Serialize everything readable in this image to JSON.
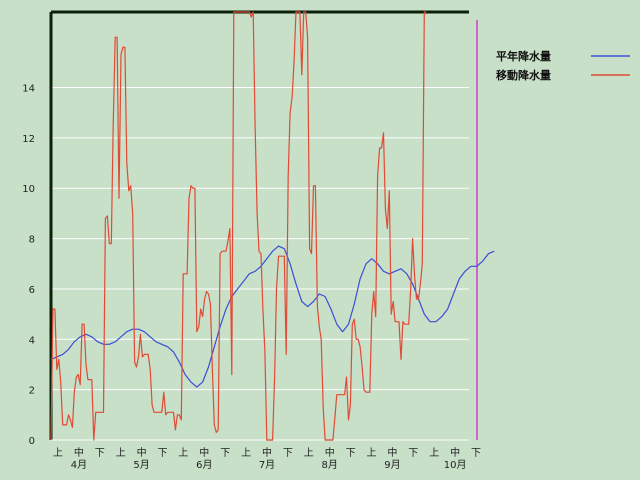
{
  "chart_data": {
    "type": "line",
    "title": "",
    "xlabel": "",
    "ylabel": "",
    "ylim": [
      0,
      17
    ],
    "y_ticks": [
      0,
      2,
      4,
      6,
      8,
      10,
      12,
      14
    ],
    "grid": "horizontal",
    "legend_position": "top-right",
    "x_ticks": [
      "上",
      "中",
      "下",
      "上",
      "中",
      "下",
      "上",
      "中",
      "下",
      "上",
      "中",
      "下",
      "上",
      "中",
      "下",
      "上",
      "中",
      "下",
      "上",
      "中",
      "下"
    ],
    "month_labels": [
      "4月",
      "5月",
      "6月",
      "7月",
      "8月",
      "9月",
      "10月"
    ],
    "x_day_range": [
      0,
      215
    ],
    "series": [
      {
        "name": "平年降水量",
        "color": "#3a4fd6",
        "points": [
          [
            0,
            3.2
          ],
          [
            3,
            3.3
          ],
          [
            6,
            3.4
          ],
          [
            9,
            3.6
          ],
          [
            12,
            3.9
          ],
          [
            15,
            4.1
          ],
          [
            18,
            4.2
          ],
          [
            21,
            4.1
          ],
          [
            24,
            3.9
          ],
          [
            27,
            3.8
          ],
          [
            30,
            3.8
          ],
          [
            33,
            3.9
          ],
          [
            36,
            4.1
          ],
          [
            39,
            4.3
          ],
          [
            42,
            4.4
          ],
          [
            45,
            4.4
          ],
          [
            48,
            4.3
          ],
          [
            51,
            4.1
          ],
          [
            54,
            3.9
          ],
          [
            57,
            3.8
          ],
          [
            60,
            3.7
          ],
          [
            63,
            3.5
          ],
          [
            66,
            3.1
          ],
          [
            69,
            2.6
          ],
          [
            72,
            2.3
          ],
          [
            75,
            2.1
          ],
          [
            78,
            2.3
          ],
          [
            81,
            2.9
          ],
          [
            84,
            3.7
          ],
          [
            87,
            4.5
          ],
          [
            90,
            5.2
          ],
          [
            93,
            5.7
          ],
          [
            96,
            6.0
          ],
          [
            99,
            6.3
          ],
          [
            102,
            6.6
          ],
          [
            105,
            6.7
          ],
          [
            108,
            6.9
          ],
          [
            111,
            7.2
          ],
          [
            114,
            7.5
          ],
          [
            117,
            7.7
          ],
          [
            120,
            7.6
          ],
          [
            123,
            7.0
          ],
          [
            126,
            6.2
          ],
          [
            129,
            5.5
          ],
          [
            132,
            5.3
          ],
          [
            135,
            5.5
          ],
          [
            138,
            5.8
          ],
          [
            141,
            5.7
          ],
          [
            144,
            5.2
          ],
          [
            147,
            4.6
          ],
          [
            150,
            4.3
          ],
          [
            153,
            4.6
          ],
          [
            156,
            5.4
          ],
          [
            159,
            6.4
          ],
          [
            162,
            7.0
          ],
          [
            165,
            7.2
          ],
          [
            168,
            7.0
          ],
          [
            171,
            6.7
          ],
          [
            174,
            6.6
          ],
          [
            177,
            6.7
          ],
          [
            180,
            6.8
          ],
          [
            183,
            6.6
          ],
          [
            186,
            6.2
          ],
          [
            189,
            5.6
          ],
          [
            192,
            5.0
          ],
          [
            195,
            4.7
          ],
          [
            198,
            4.7
          ],
          [
            201,
            4.9
          ],
          [
            204,
            5.2
          ],
          [
            207,
            5.8
          ],
          [
            210,
            6.4
          ],
          [
            213,
            6.7
          ],
          [
            216,
            6.9
          ],
          [
            219,
            6.9
          ],
          [
            222,
            7.1
          ],
          [
            225,
            7.4
          ],
          [
            228,
            7.5
          ]
        ]
      },
      {
        "name": "移動降水量",
        "color": "#e14a34",
        "points": [
          [
            0,
            0
          ],
          [
            1,
            5.2
          ],
          [
            2,
            5.2
          ],
          [
            3,
            2.8
          ],
          [
            4,
            3.2
          ],
          [
            5,
            2.3
          ],
          [
            6,
            0.6
          ],
          [
            7,
            0.6
          ],
          [
            8,
            0.6
          ],
          [
            9,
            1.0
          ],
          [
            10,
            0.8
          ],
          [
            11,
            0.5
          ],
          [
            12,
            1.9
          ],
          [
            13,
            2.5
          ],
          [
            14,
            2.6
          ],
          [
            15,
            2.2
          ],
          [
            16,
            4.6
          ],
          [
            17,
            4.6
          ],
          [
            18,
            3.0
          ],
          [
            19,
            2.4
          ],
          [
            20,
            2.4
          ],
          [
            21,
            2.4
          ],
          [
            22,
            0
          ],
          [
            23,
            1.1
          ],
          [
            24,
            1.1
          ],
          [
            25,
            1.1
          ],
          [
            26,
            1.1
          ],
          [
            27,
            1.1
          ],
          [
            28,
            8.8
          ],
          [
            29,
            8.9
          ],
          [
            30,
            7.8
          ],
          [
            31,
            7.8
          ],
          [
            32,
            12.5
          ],
          [
            33,
            16.0
          ],
          [
            34,
            16.0
          ],
          [
            35,
            9.6
          ],
          [
            36,
            15.3
          ],
          [
            37,
            15.6
          ],
          [
            38,
            15.6
          ],
          [
            39,
            11.0
          ],
          [
            40,
            9.9
          ],
          [
            41,
            10.1
          ],
          [
            42,
            9.0
          ],
          [
            43,
            3.1
          ],
          [
            44,
            2.9
          ],
          [
            45,
            3.3
          ],
          [
            46,
            4.2
          ],
          [
            47,
            3.3
          ],
          [
            48,
            3.4
          ],
          [
            49,
            3.4
          ],
          [
            50,
            3.4
          ],
          [
            51,
            2.8
          ],
          [
            52,
            1.4
          ],
          [
            53,
            1.1
          ],
          [
            54,
            1.1
          ],
          [
            55,
            1.1
          ],
          [
            56,
            1.1
          ],
          [
            57,
            1.1
          ],
          [
            58,
            1.9
          ],
          [
            59,
            1.0
          ],
          [
            60,
            1.1
          ],
          [
            61,
            1.1
          ],
          [
            62,
            1.1
          ],
          [
            63,
            1.1
          ],
          [
            64,
            0.4
          ],
          [
            65,
            1.0
          ],
          [
            66,
            1.0
          ],
          [
            67,
            0.8
          ],
          [
            68,
            6.6
          ],
          [
            69,
            6.6
          ],
          [
            70,
            6.6
          ],
          [
            71,
            9.6
          ],
          [
            72,
            10.1
          ],
          [
            73,
            10.0
          ],
          [
            74,
            10.0
          ],
          [
            75,
            4.3
          ],
          [
            76,
            4.5
          ],
          [
            77,
            5.2
          ],
          [
            78,
            4.9
          ],
          [
            79,
            5.6
          ],
          [
            80,
            5.9
          ],
          [
            81,
            5.8
          ],
          [
            82,
            5.4
          ],
          [
            83,
            2.8
          ],
          [
            84,
            0.6
          ],
          [
            85,
            0.3
          ],
          [
            86,
            0.4
          ],
          [
            87,
            7.4
          ],
          [
            88,
            7.5
          ],
          [
            89,
            7.5
          ],
          [
            90,
            7.5
          ],
          [
            91,
            7.9
          ],
          [
            92,
            8.4
          ],
          [
            93,
            2.6
          ],
          [
            94,
            17.0
          ],
          [
            95,
            17.0
          ],
          [
            96,
            17.0
          ],
          [
            97,
            17.0
          ],
          [
            98,
            17.0
          ],
          [
            99,
            17.0
          ],
          [
            100,
            17.0
          ],
          [
            101,
            17.0
          ],
          [
            102,
            17.0
          ],
          [
            103,
            16.8
          ],
          [
            104,
            17.0
          ],
          [
            105,
            12.5
          ],
          [
            106,
            9.0
          ],
          [
            107,
            7.5
          ],
          [
            108,
            7.4
          ],
          [
            109,
            5.2
          ],
          [
            110,
            3.5
          ],
          [
            111,
            0
          ],
          [
            112,
            0
          ],
          [
            113,
            0
          ],
          [
            114,
            0
          ],
          [
            115,
            2.5
          ],
          [
            116,
            6.0
          ],
          [
            117,
            7.3
          ],
          [
            118,
            7.3
          ],
          [
            119,
            7.3
          ],
          [
            120,
            7.3
          ],
          [
            121,
            3.4
          ],
          [
            122,
            10.5
          ],
          [
            123,
            13.0
          ],
          [
            124,
            13.6
          ],
          [
            125,
            15.0
          ],
          [
            126,
            17.0
          ],
          [
            127,
            17.0
          ],
          [
            128,
            17.0
          ],
          [
            129,
            14.5
          ],
          [
            130,
            17.0
          ],
          [
            131,
            17.0
          ],
          [
            132,
            16.0
          ],
          [
            133,
            7.6
          ],
          [
            134,
            7.4
          ],
          [
            135,
            10.1
          ],
          [
            136,
            10.1
          ],
          [
            137,
            5.3
          ],
          [
            138,
            4.5
          ],
          [
            139,
            4.0
          ],
          [
            140,
            1.3
          ],
          [
            141,
            0
          ],
          [
            142,
            0
          ],
          [
            143,
            0
          ],
          [
            144,
            0
          ],
          [
            145,
            0
          ],
          [
            146,
            0.9
          ],
          [
            147,
            1.8
          ],
          [
            148,
            1.8
          ],
          [
            149,
            1.8
          ],
          [
            150,
            1.8
          ],
          [
            151,
            1.8
          ],
          [
            152,
            2.5
          ],
          [
            153,
            0.8
          ],
          [
            154,
            1.4
          ],
          [
            155,
            4.6
          ],
          [
            156,
            4.8
          ],
          [
            157,
            4.0
          ],
          [
            158,
            4.0
          ],
          [
            159,
            3.7
          ],
          [
            160,
            2.9
          ],
          [
            161,
            2.0
          ],
          [
            162,
            1.9
          ],
          [
            163,
            1.9
          ],
          [
            164,
            1.9
          ],
          [
            165,
            5.0
          ],
          [
            166,
            5.9
          ],
          [
            167,
            4.9
          ],
          [
            168,
            10.5
          ],
          [
            169,
            11.6
          ],
          [
            170,
            11.6
          ],
          [
            171,
            12.2
          ],
          [
            172,
            9.2
          ],
          [
            173,
            8.4
          ],
          [
            174,
            9.9
          ],
          [
            175,
            5.0
          ],
          [
            176,
            5.5
          ],
          [
            177,
            4.7
          ],
          [
            178,
            4.7
          ],
          [
            179,
            4.7
          ],
          [
            180,
            3.2
          ],
          [
            181,
            4.7
          ],
          [
            182,
            4.6
          ],
          [
            183,
            4.6
          ],
          [
            184,
            4.6
          ],
          [
            185,
            6.0
          ],
          [
            186,
            8.0
          ],
          [
            187,
            6.5
          ],
          [
            188,
            5.6
          ],
          [
            189,
            5.6
          ],
          [
            190,
            6.2
          ],
          [
            191,
            7.0
          ],
          [
            192,
            17.0
          ],
          [
            193,
            17.0
          ]
        ]
      }
    ]
  }
}
